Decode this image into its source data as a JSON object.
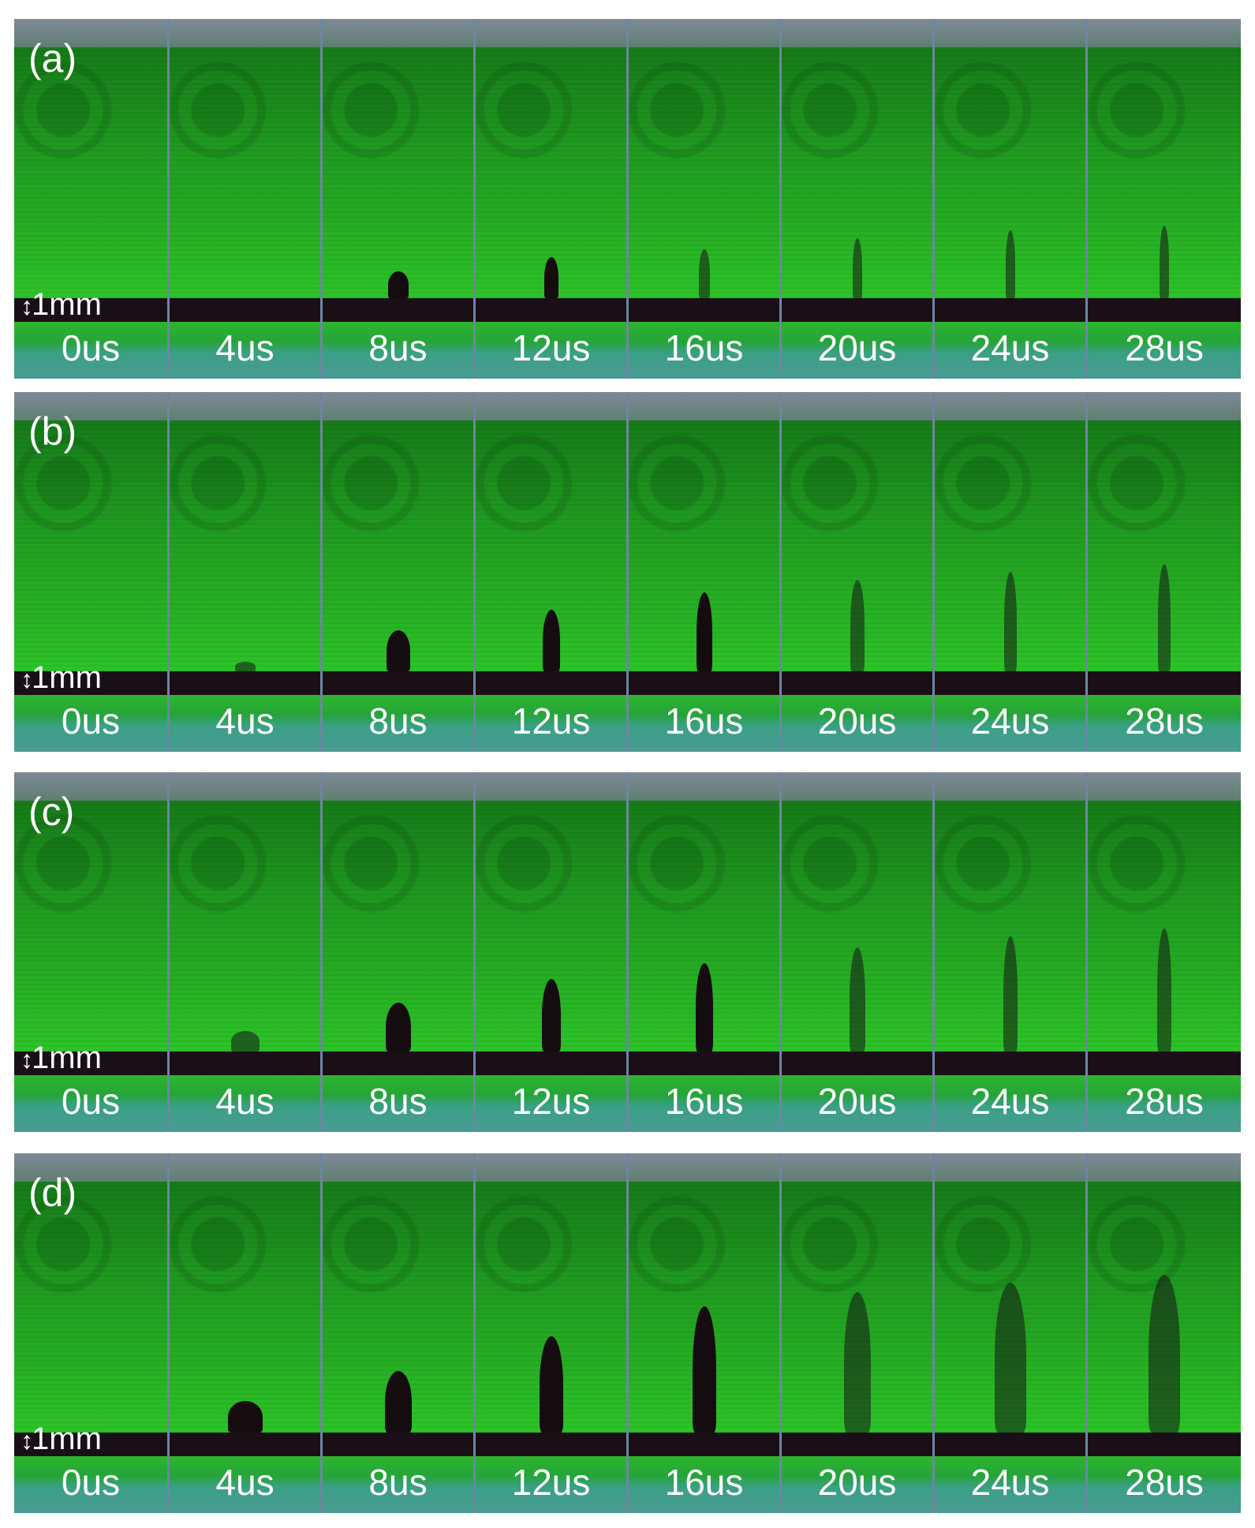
{
  "figure": {
    "panels": [
      {
        "label": "(a)",
        "scale_bar": "1mm",
        "times": [
          "0us",
          "4us",
          "8us",
          "12us",
          "16us",
          "20us",
          "24us",
          "28us"
        ]
      },
      {
        "label": "(b)",
        "scale_bar": "1mm",
        "times": [
          "0us",
          "4us",
          "8us",
          "12us",
          "16us",
          "20us",
          "24us",
          "28us"
        ]
      },
      {
        "label": "(c)",
        "scale_bar": "1mm",
        "times": [
          "0us",
          "4us",
          "8us",
          "12us",
          "16us",
          "20us",
          "24us",
          "28us"
        ]
      },
      {
        "label": "(d)",
        "scale_bar": "1mm",
        "times": [
          "0us",
          "4us",
          "8us",
          "12us",
          "16us",
          "20us",
          "24us",
          "28us"
        ]
      }
    ]
  }
}
